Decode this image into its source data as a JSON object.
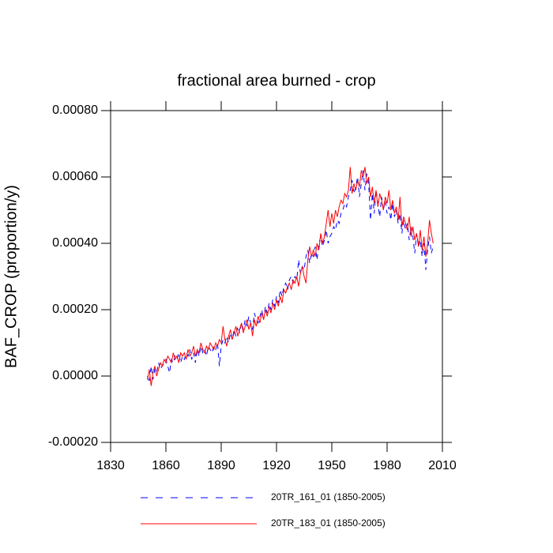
{
  "chart_data": {
    "type": "line",
    "title": "fractional area burned - crop",
    "y_label": "BAF_CROP  (proportion/y)",
    "x": [
      1850,
      1851,
      1852,
      1853,
      1854,
      1855,
      1856,
      1857,
      1858,
      1859,
      1860,
      1861,
      1862,
      1863,
      1864,
      1865,
      1866,
      1867,
      1868,
      1869,
      1870,
      1871,
      1872,
      1873,
      1874,
      1875,
      1876,
      1877,
      1878,
      1879,
      1880,
      1881,
      1882,
      1883,
      1884,
      1885,
      1886,
      1887,
      1888,
      1889,
      1890,
      1891,
      1892,
      1893,
      1894,
      1895,
      1896,
      1897,
      1898,
      1899,
      1900,
      1901,
      1902,
      1903,
      1904,
      1905,
      1906,
      1907,
      1908,
      1909,
      1910,
      1911,
      1912,
      1913,
      1914,
      1915,
      1916,
      1917,
      1918,
      1919,
      1920,
      1921,
      1922,
      1923,
      1924,
      1925,
      1926,
      1927,
      1928,
      1929,
      1930,
      1931,
      1932,
      1933,
      1934,
      1935,
      1936,
      1937,
      1938,
      1939,
      1940,
      1941,
      1942,
      1943,
      1944,
      1945,
      1946,
      1947,
      1948,
      1949,
      1950,
      1951,
      1952,
      1953,
      1954,
      1955,
      1956,
      1957,
      1958,
      1959,
      1960,
      1961,
      1962,
      1963,
      1964,
      1965,
      1966,
      1967,
      1968,
      1969,
      1970,
      1971,
      1972,
      1973,
      1974,
      1975,
      1976,
      1977,
      1978,
      1979,
      1980,
      1981,
      1982,
      1983,
      1984,
      1985,
      1986,
      1987,
      1988,
      1989,
      1990,
      1991,
      1992,
      1993,
      1994,
      1995,
      1996,
      1997,
      1998,
      1999,
      2000,
      2001,
      2002,
      2003,
      2004,
      2005
    ],
    "series": [
      {
        "name": "20TR_161_01 (1850-2005)",
        "color": "#0000ff",
        "dash": true,
        "values": [
          0.0,
          -2e-05,
          3e-05,
          -1e-05,
          2e-05,
          1e-05,
          4e-05,
          2e-05,
          3e-05,
          4e-05,
          5e-05,
          3e-05,
          1e-05,
          5e-05,
          4e-05,
          6e-05,
          5e-05,
          7e-05,
          4e-05,
          6e-05,
          5e-05,
          7e-05,
          6e-05,
          8e-05,
          5e-05,
          7e-05,
          4e-05,
          8e-05,
          6e-05,
          9e-05,
          7e-05,
          8e-05,
          6e-05,
          9e-05,
          8e-05,
          7e-05,
          9e-05,
          8e-05,
          0.0001,
          3e-05,
          9e-05,
          0.00011,
          0.0001,
          0.00012,
          0.0001,
          0.00013,
          0.00011,
          0.00014,
          0.00012,
          0.00015,
          0.00013,
          0.00016,
          0.00014,
          0.00017,
          0.00015,
          0.00018,
          0.00016,
          0.00014,
          0.00019,
          0.00017,
          0.00016,
          0.00018,
          0.0002,
          0.00017,
          0.00021,
          0.00019,
          0.00022,
          0.0002,
          0.00023,
          0.00021,
          0.00024,
          0.00022,
          0.00026,
          0.00024,
          0.00027,
          0.00028,
          0.00026,
          0.00029,
          0.0003,
          0.00028,
          0.0003,
          0.00029,
          0.00035,
          0.00031,
          0.00033,
          0.00032,
          0.00036,
          0.00038,
          0.00034,
          0.00037,
          0.00036,
          0.00039,
          0.00035,
          0.0004,
          0.00042,
          0.00039,
          0.00041,
          0.00044,
          0.0004,
          0.00042,
          0.00043,
          0.00045,
          0.00044,
          0.00047,
          0.00046,
          0.00049,
          0.0005,
          0.00052,
          0.00051,
          0.00054,
          0.00056,
          0.00059,
          0.00055,
          0.00057,
          0.0006,
          0.00054,
          0.00058,
          0.00062,
          0.00056,
          0.00061,
          0.00058,
          0.00047,
          0.00055,
          0.00049,
          0.00056,
          0.00052,
          0.00048,
          0.00054,
          0.0005,
          0.00053,
          0.00049,
          0.00051,
          0.00047,
          0.00052,
          0.00048,
          0.0005,
          0.00046,
          0.00049,
          0.00043,
          0.00047,
          0.00044,
          0.00046,
          0.00041,
          0.00045,
          0.00042,
          0.00037,
          0.00043,
          0.00039,
          0.00041,
          0.00036,
          0.0004,
          0.00032,
          0.00038,
          0.00042,
          0.00037,
          0.00039
        ]
      },
      {
        "name": "20TR_183_01 (1850-2005)",
        "color": "#ff0000",
        "dash": false,
        "values": [
          -1e-05,
          2e-05,
          -3e-05,
          1e-05,
          3e-05,
          0.0,
          2e-05,
          4e-05,
          3e-05,
          5e-05,
          4e-05,
          6e-05,
          5e-05,
          4e-05,
          7e-05,
          5e-05,
          6e-05,
          4e-05,
          7e-05,
          6e-05,
          7e-05,
          5e-05,
          8e-05,
          6e-05,
          7e-05,
          9e-05,
          6e-05,
          8e-05,
          7e-05,
          0.0001,
          8e-05,
          7e-05,
          9e-05,
          8e-05,
          0.0001,
          9e-05,
          8e-05,
          0.0001,
          9e-05,
          0.00011,
          0.0001,
          0.00015,
          0.00011,
          9e-05,
          0.00012,
          0.00014,
          0.00011,
          0.00013,
          0.00015,
          0.00012,
          0.00014,
          0.00016,
          0.00013,
          0.00015,
          0.00017,
          0.00014,
          0.00016,
          0.00012,
          0.00017,
          0.00015,
          0.00018,
          0.00016,
          0.00019,
          0.00017,
          0.0002,
          0.00018,
          0.00021,
          0.00019,
          0.00022,
          0.0002,
          0.00023,
          0.00021,
          0.00024,
          0.00022,
          0.00026,
          0.00025,
          0.00027,
          0.00028,
          0.00026,
          0.00029,
          0.00028,
          0.0003,
          0.00027,
          0.00031,
          0.00033,
          0.0003,
          0.00028,
          0.00035,
          0.00039,
          0.00036,
          0.00038,
          0.00036,
          0.0004,
          0.00038,
          0.00043,
          0.0004,
          0.00042,
          0.00046,
          0.0005,
          0.00045,
          0.00049,
          0.00046,
          0.0005,
          0.00048,
          0.00051,
          0.00053,
          0.00052,
          0.00055,
          0.00054,
          0.00056,
          0.00063,
          0.00055,
          0.00058,
          0.00056,
          0.00059,
          0.00057,
          0.00062,
          0.0006,
          0.00063,
          0.00058,
          0.0006,
          0.00054,
          0.00057,
          0.00052,
          0.00056,
          0.00051,
          0.00055,
          0.00053,
          0.0005,
          0.00054,
          0.00052,
          0.00056,
          0.0005,
          0.00053,
          0.00049,
          0.00051,
          0.00047,
          0.00054,
          0.00045,
          0.00048,
          0.00046,
          0.00044,
          0.00048,
          0.00042,
          0.00045,
          0.00041,
          0.00043,
          0.00039,
          0.00044,
          0.00038,
          0.00042,
          0.00036,
          0.0004,
          0.00047,
          0.00043,
          0.0004
        ]
      }
    ],
    "xlim": [
      1830,
      2010
    ],
    "xticks": [
      1830,
      1860,
      1890,
      1920,
      1950,
      1980,
      2010
    ],
    "ylim": [
      -0.0002,
      0.0008
    ],
    "yticks": [
      {
        "value": -0.0002,
        "label": "-0.00020"
      },
      {
        "value": 0,
        "label": "0.00000"
      },
      {
        "value": 0.0002,
        "label": "0.00020"
      },
      {
        "value": 0.0004,
        "label": "0.00040"
      },
      {
        "value": 0.0006,
        "label": "0.00060"
      },
      {
        "value": 0.0008,
        "label": "0.00080"
      }
    ]
  }
}
